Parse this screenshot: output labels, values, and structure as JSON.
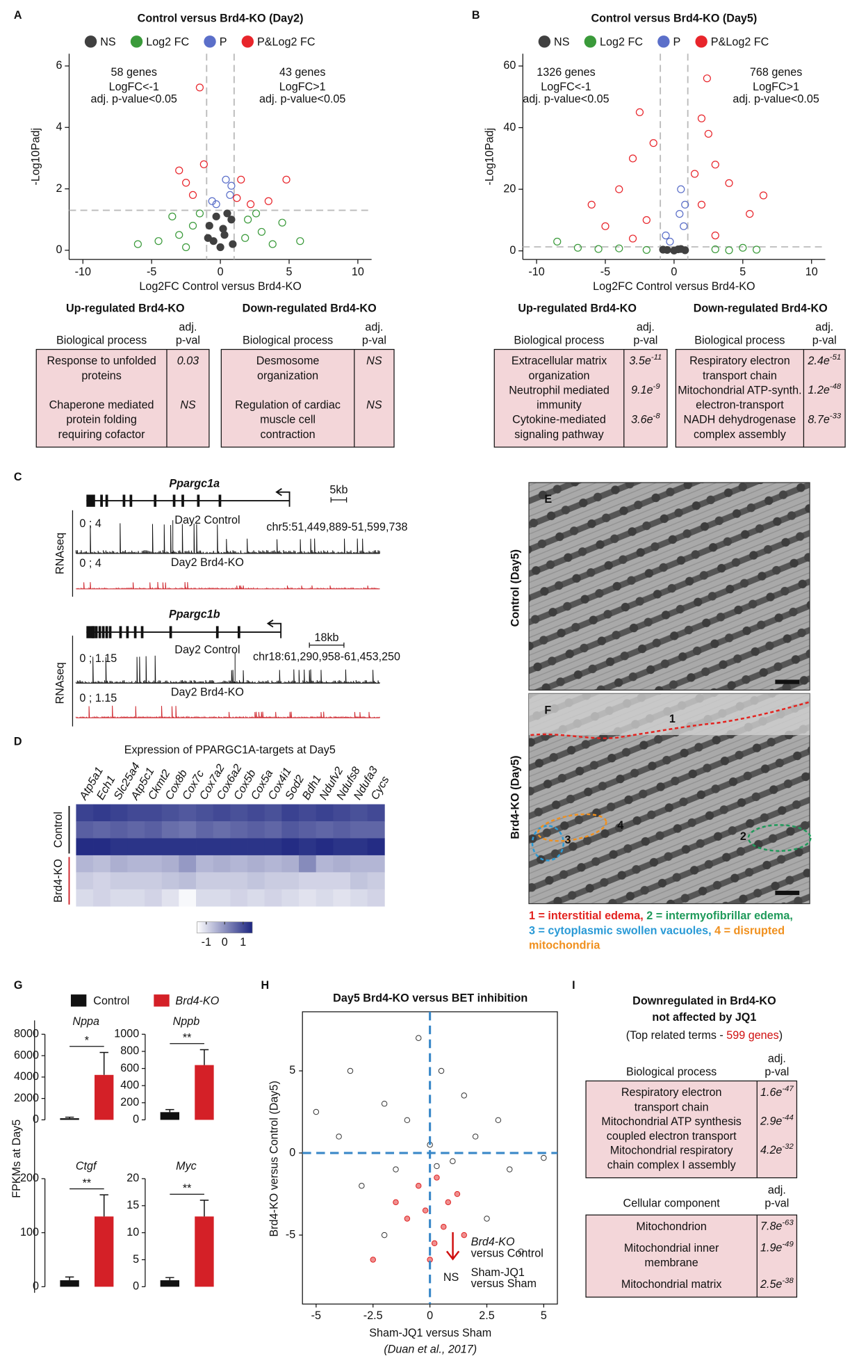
{
  "panel_labels": [
    "A",
    "B",
    "C",
    "D",
    "E",
    "F",
    "G",
    "H",
    "I"
  ],
  "chart_data": [
    {
      "type": "volcano",
      "title": "Control versus Brd4-KO (Day2)",
      "xlabel": "Log2FC Control versus Brd4-KO",
      "ylabel": "-Log10Padj",
      "xlim": [
        -11,
        11
      ],
      "xticks": [
        -10,
        -5,
        0,
        5,
        10
      ],
      "ylim": [
        -0.3,
        6.4
      ],
      "yticks": [
        0,
        2,
        4,
        6
      ],
      "cutoffs": {
        "x": [
          -1,
          1
        ],
        "y": 1.3
      },
      "annotations": [
        "58 genes",
        "LogFC<-1",
        "adj. p-value<0.05",
        "43 genes",
        "LogFC>1",
        "adj. p-value<0.05"
      ],
      "series": [
        {
          "name": "NS",
          "color": "#404040",
          "x": [
            -0.5,
            0.3,
            0.8,
            -0.8,
            0,
            0.5,
            -0.3,
            0.9,
            -0.9,
            0.2
          ],
          "values": [
            0.3,
            0.5,
            1.0,
            0.8,
            0.1,
            1.2,
            1.1,
            0.2,
            0.4,
            0.7
          ]
        },
        {
          "name": "Log2 FC",
          "color": "#3a9a3a",
          "x": [
            -3,
            -2,
            -4.5,
            3,
            2,
            4.5,
            -1.5,
            1.8,
            -6,
            5.8,
            -3.5,
            3.8,
            -2.5,
            2.6
          ],
          "values": [
            0.5,
            0.8,
            0.3,
            0.6,
            1.0,
            0.9,
            1.2,
            0.4,
            0.2,
            0.3,
            1.1,
            0.2,
            0.1,
            1.2
          ]
        },
        {
          "name": "P",
          "color": "#5b6fc9",
          "x": [
            -0.6,
            0.7,
            0.4,
            -0.3,
            0.8
          ],
          "values": [
            1.6,
            1.8,
            2.3,
            1.5,
            2.1
          ]
        },
        {
          "name": "P&Log2 FC",
          "color": "#e8252b",
          "x": [
            -1.5,
            -3,
            -2,
            -2.5,
            1.5,
            2.2,
            3.5,
            -1.2,
            1.2,
            4.8
          ],
          "values": [
            5.3,
            2.6,
            1.8,
            2.2,
            2.3,
            1.5,
            1.6,
            2.8,
            1.7,
            2.3
          ]
        }
      ]
    },
    {
      "type": "volcano",
      "title": "Control versus Brd4-KO (Day5)",
      "xlabel": "Log2FC Control versus Brd4-KO",
      "ylabel": "-Log10Padj",
      "xlim": [
        -11,
        11
      ],
      "xticks": [
        -10,
        -5,
        0,
        5,
        10
      ],
      "ylim": [
        -2.8,
        64
      ],
      "yticks": [
        0,
        20,
        40,
        60
      ],
      "cutoffs": {
        "x": [
          -1,
          1
        ],
        "y": 1.3
      },
      "annotations": [
        "1326 genes",
        "LogFC<-1",
        "adj. p-value<0.05",
        "768 genes",
        "LogFC>1",
        "adj. p-value<0.05"
      ],
      "series": [
        {
          "name": "NS",
          "color": "#404040",
          "x": [
            -0.5,
            0.3,
            0.8,
            -0.8,
            0,
            0.5
          ],
          "values": [
            0.3,
            0.5,
            0.2,
            0.4,
            0.1,
            0.6
          ]
        },
        {
          "name": "Log2 FC",
          "color": "#3a9a3a",
          "x": [
            -4,
            -7,
            3,
            6,
            -2,
            5,
            -8.5,
            4,
            -5.5
          ],
          "values": [
            0.8,
            1.0,
            0.5,
            0.4,
            0.3,
            1.0,
            3.0,
            0.2,
            0.6
          ]
        },
        {
          "name": "P",
          "color": "#5b6fc9",
          "x": [
            -0.6,
            0.7,
            0.4,
            -0.3,
            0.8,
            0.5
          ],
          "values": [
            5,
            8,
            12,
            3,
            15,
            20
          ]
        },
        {
          "name": "P&Log2 FC",
          "color": "#e8252b",
          "x": [
            2.4,
            -2.5,
            2.5,
            -3,
            3,
            -4,
            4,
            -2,
            2,
            -5,
            5.5,
            -1.5,
            1.5,
            -6,
            6.5,
            3,
            -3,
            2
          ],
          "values": [
            56,
            45,
            38,
            30,
            28,
            20,
            22,
            10,
            15,
            8,
            12,
            35,
            25,
            15,
            18,
            5,
            4,
            43
          ]
        }
      ]
    },
    {
      "type": "heatmap",
      "title": "Expression of PPARGC1A-targets at Day5",
      "columns": [
        "Atp5a1",
        "Ech1",
        "Slc25a4",
        "Atp5c1",
        "Ckmt2",
        "Cox8b",
        "Cox7c",
        "Cox7a2",
        "Cox6a2",
        "Cox5b",
        "Cox5a",
        "Cox4i1",
        "Sod2",
        "Bdh1",
        "Ndufv2",
        "Ndufs8",
        "Ndufa3",
        "Cycs"
      ],
      "row_labels": [
        {
          "label": "Control",
          "color": "#111111"
        },
        {
          "label": "Brd4-KO",
          "color": "#cc1f26"
        }
      ],
      "values": [
        [
          1.1,
          1.2,
          1.1,
          1.0,
          1.0,
          0.9,
          0.8,
          0.9,
          1.0,
          0.9,
          1.0,
          0.9,
          1.1,
          1.0,
          1.1,
          1.0,
          0.9,
          1.0
        ],
        [
          0.7,
          0.6,
          0.7,
          0.6,
          0.7,
          0.5,
          0.4,
          0.6,
          0.5,
          0.6,
          0.7,
          0.6,
          0.8,
          0.7,
          0.6,
          0.7,
          0.6,
          0.6
        ],
        [
          1.4,
          1.4,
          1.3,
          1.3,
          1.3,
          1.3,
          1.3,
          1.3,
          1.3,
          1.3,
          1.3,
          1.3,
          1.4,
          1.3,
          1.4,
          1.3,
          1.3,
          1.4
        ],
        [
          -0.5,
          -0.6,
          -0.4,
          -0.5,
          -0.5,
          -0.4,
          -0.1,
          -0.5,
          -0.4,
          -0.5,
          -0.4,
          -0.5,
          -0.4,
          0.1,
          -0.5,
          -0.4,
          -0.5,
          -0.5
        ],
        [
          -0.8,
          -0.9,
          -0.8,
          -0.8,
          -0.8,
          -0.7,
          -0.6,
          -0.8,
          -0.8,
          -0.8,
          -0.7,
          -0.8,
          -0.8,
          -0.9,
          -0.9,
          -0.9,
          -0.7,
          -0.8
        ],
        [
          -1.0,
          -0.9,
          -1.0,
          -1.0,
          -0.9,
          -1.1,
          -1.4,
          -1.0,
          -1.0,
          -0.9,
          -1.0,
          -0.9,
          -1.0,
          -1.1,
          -1.0,
          -1.1,
          -1.0,
          -0.9
        ]
      ],
      "clim": [
        -1.5,
        1.5
      ],
      "cticks": [
        -1,
        0,
        1
      ],
      "colors": [
        "#ffffff",
        "#1c2580"
      ]
    },
    {
      "type": "bar",
      "title": "Nppa",
      "values": [
        150,
        4200
      ],
      "errors": [
        100,
        2100
      ],
      "colors": [
        "#111111",
        "#d42027"
      ],
      "ylim": [
        0,
        8000
      ],
      "yticks": [
        0,
        2000,
        4000,
        6000,
        8000
      ],
      "significance": "*"
    },
    {
      "type": "bar",
      "title": "Nppb",
      "values": [
        90,
        640
      ],
      "errors": [
        30,
        180
      ],
      "colors": [
        "#111111",
        "#d42027"
      ],
      "ylim": [
        0,
        1000
      ],
      "yticks": [
        0,
        200,
        400,
        600,
        800,
        1000
      ],
      "significance": "**"
    },
    {
      "type": "bar",
      "title": "Ctgf",
      "values": [
        12,
        130
      ],
      "errors": [
        6,
        40
      ],
      "colors": [
        "#111111",
        "#d42027"
      ],
      "ylim": [
        0,
        200
      ],
      "yticks": [
        0,
        100,
        200
      ],
      "significance": "**"
    },
    {
      "type": "bar",
      "title": "Myc",
      "values": [
        1.2,
        13
      ],
      "errors": [
        0.5,
        3
      ],
      "colors": [
        "#111111",
        "#d42027"
      ],
      "ylim": [
        0,
        20
      ],
      "yticks": [
        0,
        5,
        10,
        15,
        20
      ],
      "significance": "**"
    },
    {
      "type": "scatter",
      "title": "Day5 Brd4-KO versus BET inhibition",
      "xlabel": "Sham-JQ1 versus Sham",
      "ylabel": "Brd4-KO versus Control (Day5)",
      "note": "(Duan et al., 2017)",
      "xlim": [
        -5.6,
        5.6
      ],
      "xticks": [
        -5,
        -2.5,
        0,
        2.5,
        5
      ],
      "ylim": [
        -9.2,
        8.6
      ],
      "yticks": [
        -5,
        0,
        5
      ],
      "ref_lines": {
        "x": 0,
        "y": 0
      },
      "annotations": [
        "Brd4-KO",
        "versus Control",
        "NS",
        "Sham-JQ1",
        "versus Sham"
      ],
      "series": [
        {
          "color": "#333333",
          "x": [
            0,
            -1,
            1,
            -2,
            2,
            -3,
            0.5,
            -0.5,
            3,
            -4,
            2.5,
            3.5,
            -2,
            5,
            -5,
            1.5,
            -1.5,
            0.3,
            4,
            -3.5
          ],
          "values": [
            0.5,
            2,
            -0.5,
            3,
            1,
            -2,
            5,
            7,
            2,
            1,
            -4,
            -1,
            -5,
            -0.3,
            2.5,
            3.5,
            -1,
            -0.8,
            -6,
            5
          ]
        },
        {
          "color": "#e02020",
          "x": [
            -0.5,
            0.3,
            0.8,
            -1,
            0.2,
            -2.5,
            1.2,
            -0.2,
            0.6,
            -1.5,
            0,
            1.5
          ],
          "values": [
            -2,
            -1.5,
            -3,
            -4,
            -5.5,
            -6.5,
            -2.5,
            -3.5,
            -4.5,
            -3,
            -6.5,
            -5
          ]
        }
      ]
    }
  ],
  "volcano_tables": [
    {
      "title": "Up-regulated Brd4-KO",
      "columns": [
        "Biological process",
        [
          "adj.",
          "p-val"
        ]
      ],
      "rows": [
        {
          "term": [
            "Response to unfolded",
            "proteins"
          ],
          "pval": "0.03"
        },
        {
          "term": [
            "Chaperone mediated",
            "protein folding",
            "requiring cofactor"
          ],
          "pval": "NS"
        }
      ]
    },
    {
      "title": "Down-regulated Brd4-KO",
      "columns": [
        "Biological process",
        [
          "adj.",
          "p-val"
        ]
      ],
      "rows": [
        {
          "term": [
            "Desmosome",
            "organization"
          ],
          "pval": "NS"
        },
        {
          "term": [
            "Regulation of cardiac",
            "muscle cell",
            "contraction"
          ],
          "pval": "NS"
        }
      ]
    },
    {
      "title": "Up-regulated Brd4-KO",
      "columns": [
        "Biological process",
        [
          "adj.",
          "p-val"
        ]
      ],
      "rows": [
        {
          "term": [
            "Extracellular matrix",
            "organization"
          ],
          "pval": {
            "base": "3.5e",
            "exp": "-11"
          }
        },
        {
          "term": [
            "Neutrophil mediated",
            "immunity"
          ],
          "pval": {
            "base": "9.1e",
            "exp": "-9"
          }
        },
        {
          "term": [
            "Cytokine-mediated",
            "signaling pathway"
          ],
          "pval": {
            "base": "3.6e",
            "exp": "-8"
          }
        }
      ]
    },
    {
      "title": "Down-regulated Brd4-KO",
      "columns": [
        "Biological process",
        [
          "adj.",
          "p-val"
        ]
      ],
      "rows": [
        {
          "term": [
            "Respiratory electron",
            "transport chain"
          ],
          "pval": {
            "base": "2.4e",
            "exp": "-51"
          }
        },
        {
          "term": [
            "Mitochondrial ATP-synth.",
            "electron-transport"
          ],
          "pval": {
            "base": "1.2e",
            "exp": "-48"
          }
        },
        {
          "term": [
            "NADH dehydrogenase",
            "complex assembly"
          ],
          "pval": {
            "base": "8.7e",
            "exp": "-33"
          }
        }
      ]
    }
  ],
  "tracks": [
    {
      "gene": "Ppargc1a",
      "scale": "5kb",
      "region": "chr5:51,449,889-51,599,738",
      "assay": "RNAseq",
      "tracks": [
        {
          "label": "Day2 Control",
          "range": "0 ; 4",
          "color": "#111111"
        },
        {
          "label": "Day2 Brd4-KO",
          "range": "0 ; 4",
          "color": "#cc1f26"
        }
      ]
    },
    {
      "gene": "Ppargc1b",
      "scale": "18kb",
      "region": "chr18:61,290,958-61,453,250",
      "assay": "RNAseq",
      "tracks": [
        {
          "label": "Day2 Control",
          "range": "0 ; 1.15",
          "color": "#111111"
        },
        {
          "label": "Day2 Brd4-KO",
          "range": "0 ; 1.15",
          "color": "#cc1f26"
        }
      ]
    }
  ],
  "micrographs": {
    "conditions": [
      "Control (Day5)",
      "Brd4-KO (Day5)"
    ],
    "regions": [
      {
        "label": "1",
        "color": "#e3231f"
      },
      {
        "label": "2",
        "color": "#1f9a5a"
      },
      {
        "label": "3",
        "color": "#2a9ad6"
      },
      {
        "label": "4",
        "color": "#f0901e"
      }
    ],
    "legend": [
      [
        {
          "text": "1 = interstitial edema, ",
          "color": "#e3231f"
        },
        {
          "text": "2 = intermyofibrillar edema,",
          "color": "#1f9a5a"
        }
      ],
      [
        {
          "text": "3 = cytoplasmic swollen vacuoles, ",
          "color": "#2a9ad6"
        },
        {
          "text": "4 = disrupted",
          "color": "#f0901e"
        }
      ],
      [
        {
          "text": "mitochondria",
          "color": "#f0901e"
        }
      ]
    ]
  },
  "bar_legend": [
    {
      "name": "Control",
      "color": "#111111"
    },
    {
      "name": "Brd4-KO",
      "color": "#d42027"
    }
  ],
  "bar_ylabel": "FPKMs at Day5",
  "go_summary": {
    "title": [
      "Downregulated in Brd4-KO",
      "not affected by JQ1"
    ],
    "subtitle": [
      "(Top related terms - ",
      "599 genes",
      ")"
    ],
    "tables": [
      {
        "columns": [
          "Biological process",
          [
            "adj.",
            "p-val"
          ]
        ],
        "rows": [
          {
            "term": [
              "Respiratory electron",
              "transport chain"
            ],
            "pval": {
              "base": "1.6e",
              "exp": "-47"
            }
          },
          {
            "term": [
              "Mitochondrial ATP synthesis",
              "coupled electron transport"
            ],
            "pval": {
              "base": "2.9e",
              "exp": "-44"
            }
          },
          {
            "term": [
              "Mitochondrial respiratory",
              "chain complex I assembly"
            ],
            "pval": {
              "base": "4.2e",
              "exp": "-32"
            }
          }
        ]
      },
      {
        "columns": [
          "Cellular component",
          [
            "adj.",
            "p-val"
          ]
        ],
        "rows": [
          {
            "term": [
              "Mitochondrion"
            ],
            "pval": {
              "base": "7.8e",
              "exp": "-63"
            }
          },
          {
            "term": [
              "Mitochondrial inner",
              "membrane"
            ],
            "pval": {
              "base": "1.9e",
              "exp": "-49"
            }
          },
          {
            "term": [
              "Mitochondrial matrix"
            ],
            "pval": {
              "base": "2.5e",
              "exp": "-38"
            }
          }
        ]
      }
    ]
  }
}
